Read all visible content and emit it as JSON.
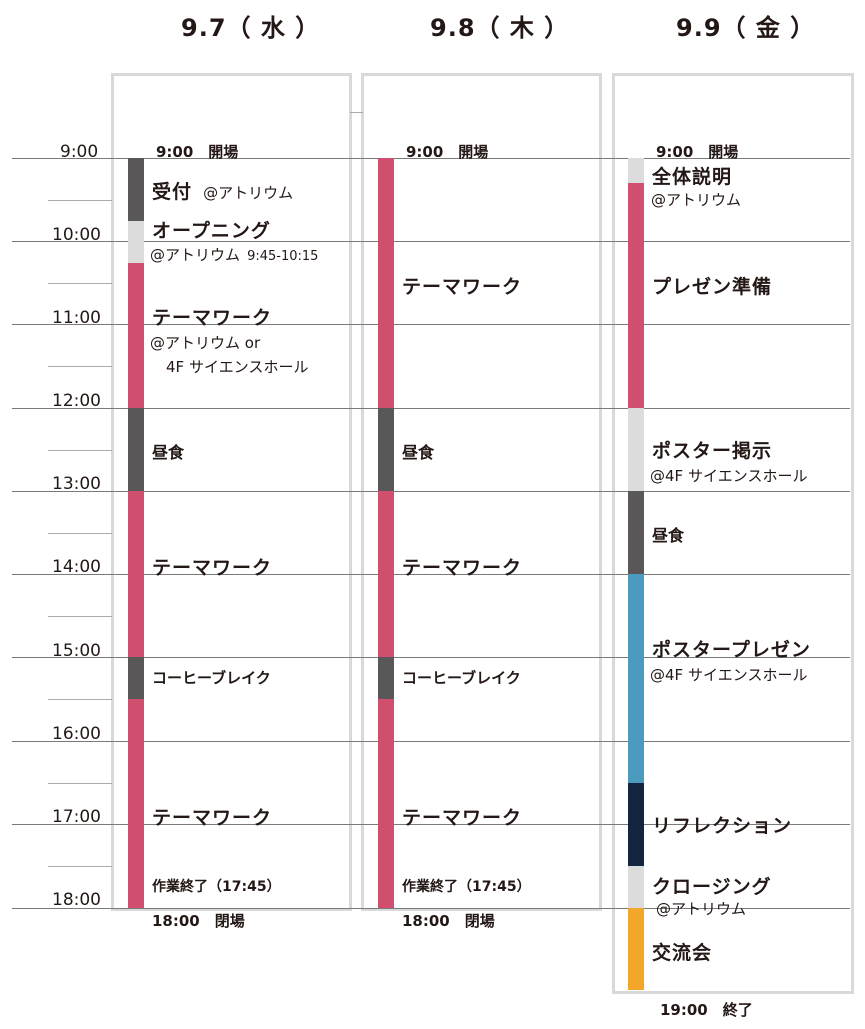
{
  "days": [
    {
      "date": "9.7",
      "weekday": "（ 水 ）"
    },
    {
      "date": "9.8",
      "weekday": "（ 木 ）"
    },
    {
      "date": "9.9",
      "weekday": "（ 金 ）"
    }
  ],
  "hours": [
    "9:00",
    "10:00",
    "11:00",
    "12:00",
    "13:00",
    "14:00",
    "15:00",
    "16:00",
    "17:00",
    "18:00"
  ],
  "colors": {
    "gray": "#595757",
    "light": "#dcdcdc",
    "pink": "#d04f6e",
    "blue": "#4a9bbd",
    "navy": "#13253f",
    "orange": "#f3a72a"
  },
  "day1": {
    "open": "9:00　開場",
    "reception": "受付",
    "reception_loc": "@アトリウム",
    "opening": "オープニング",
    "opening_loc": "@アトリウム",
    "opening_time": "9:45-10:15",
    "theme1": "テーマワーク",
    "theme1_loc1": "@アトリウム or",
    "theme1_loc2": "4F サイエンスホール",
    "lunch": "昼食",
    "theme2": "テーマワーク",
    "coffee": "コーヒーブレイク",
    "theme3": "テーマワーク",
    "end_work": "作業終了（17:45）",
    "close": "18:00　閉場"
  },
  "day2": {
    "open": "9:00　開場",
    "theme1": "テーマワーク",
    "lunch": "昼食",
    "theme2": "テーマワーク",
    "coffee": "コーヒーブレイク",
    "theme3": "テーマワーク",
    "end_work": "作業終了（17:45）",
    "close": "18:00　閉場"
  },
  "day3": {
    "open": "9:00　開場",
    "briefing": "全体説明",
    "briefing_loc": "@アトリウム",
    "prep": "プレゼン準備",
    "poster_post": "ポスター掲示",
    "poster_post_loc": "@4F サイエンスホール",
    "lunch": "昼食",
    "poster_pres": "ポスタープレゼン",
    "poster_pres_loc": "@4F サイエンスホール",
    "reflection": "リフレクション",
    "closing": "クロージング",
    "closing_loc": "@アトリウム",
    "party": "交流会",
    "end": "19:00　終了"
  }
}
